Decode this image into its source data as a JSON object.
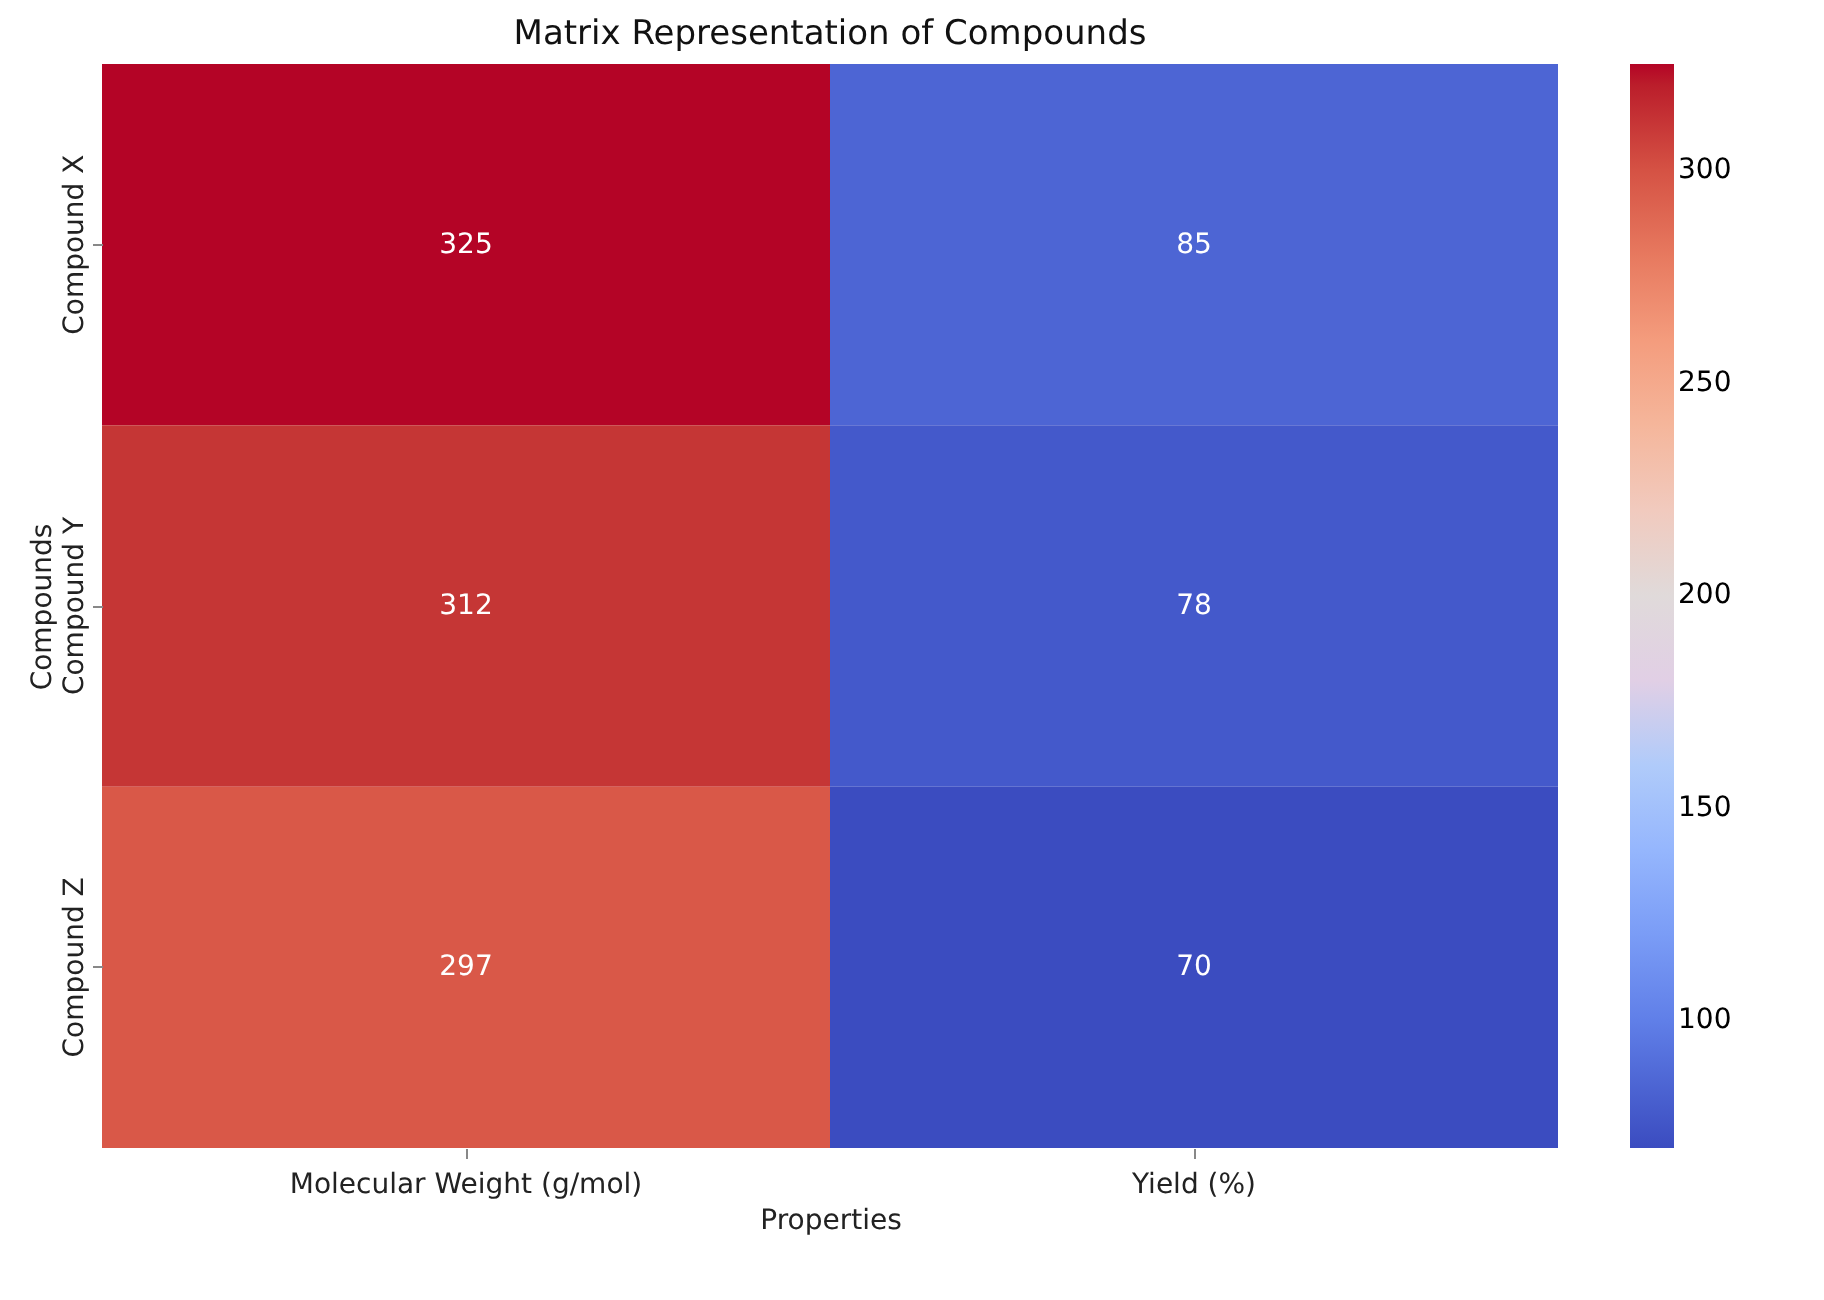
{
  "chart_data": {
    "type": "heatmap",
    "title": "Matrix Representation of Compounds",
    "xlabel": "Properties",
    "ylabel": "Compounds",
    "categories": [
      "Molecular Weight (g/mol)",
      "Yield (%)"
    ],
    "y_categories": [
      "Compound X",
      "Compound Y",
      "Compound Z"
    ],
    "cells": [
      [
        325,
        85
      ],
      [
        312,
        78
      ],
      [
        297,
        70
      ]
    ],
    "clim": [
      70,
      325
    ],
    "cticks": [
      100,
      150,
      200,
      250,
      300
    ],
    "data_labels": true
  }
}
